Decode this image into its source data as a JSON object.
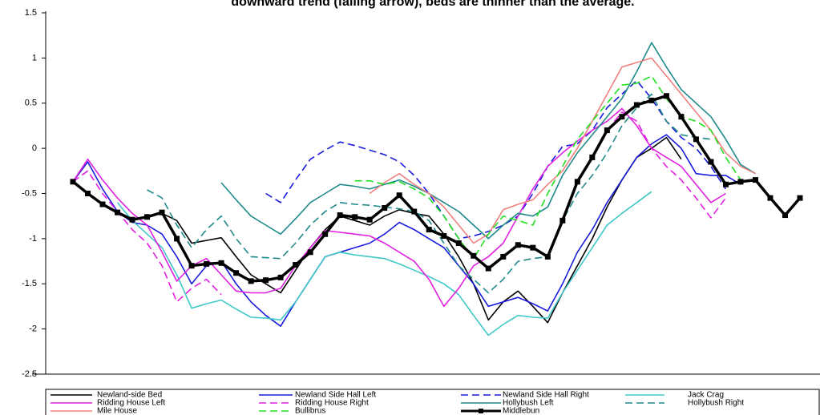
{
  "chart_data": {
    "type": "line",
    "title": "downward trend (falling arrow), beds are thinner than the average.",
    "x": [
      0,
      1,
      2,
      3,
      4,
      5,
      6,
      7,
      8,
      9,
      10,
      11,
      12,
      13,
      14,
      15,
      16,
      17,
      18,
      19,
      20,
      21,
      22,
      23,
      24,
      25,
      26,
      27,
      28,
      29,
      30,
      31,
      32,
      33,
      34,
      35,
      36,
      37,
      38,
      39,
      40,
      41,
      42,
      43,
      44,
      45,
      46,
      47,
      48,
      49
    ],
    "xlim": [
      0,
      49
    ],
    "ylim": [
      -2.5,
      1.5
    ],
    "yticks": [
      1.5,
      1,
      0.5,
      0,
      -0.5,
      -1,
      {
        "value": -1.5,
        "label": "-1.5"
      },
      {
        "value": -2,
        "label": "-2"
      },
      -2.5
    ],
    "series": [
      {
        "name": "Newland-side Bed",
        "color": "#000000",
        "dashed": false,
        "values": [
          null,
          null,
          null,
          null,
          null,
          null,
          -0.72,
          -0.8,
          -1.05,
          -1.02,
          -0.99,
          -1.2,
          -1.4,
          -1.5,
          -1.6,
          -1.35,
          -1.1,
          -0.9,
          -0.75,
          -0.8,
          -0.85,
          -0.75,
          -0.68,
          -0.72,
          -0.75,
          -0.95,
          -1.2,
          -1.5,
          -1.9,
          -1.7,
          -1.58,
          -1.75,
          -1.93,
          -1.6,
          -1.3,
          -1.0,
          -0.65,
          -0.35,
          -0.1,
          0.0,
          0.12,
          -0.12,
          null,
          null,
          null,
          null,
          null,
          null,
          null,
          null
        ]
      },
      {
        "name": "Newland Side Hall Left",
        "color": "#1a1adb",
        "dashed": false,
        "values": [
          -0.37,
          -0.15,
          -0.45,
          -0.7,
          -0.82,
          -0.85,
          -0.95,
          -1.2,
          -1.5,
          -1.3,
          -1.25,
          -1.5,
          -1.7,
          -1.85,
          -1.97,
          -1.7,
          -1.45,
          -1.2,
          -1.15,
          -1.1,
          -1.05,
          -0.95,
          -0.82,
          -0.9,
          -1.0,
          -1.1,
          -1.3,
          -1.5,
          -1.75,
          -1.7,
          -1.65,
          -1.72,
          -1.8,
          -1.5,
          -1.15,
          -0.9,
          -0.6,
          -0.35,
          -0.1,
          0.05,
          0.15,
          0.0,
          -0.28,
          -0.3,
          -0.3,
          -0.4,
          null,
          null,
          null,
          null
        ]
      },
      {
        "name": "Newland Side Hall Right",
        "color": "#1a1adb",
        "dashed": true,
        "values": [
          null,
          null,
          null,
          null,
          null,
          null,
          null,
          null,
          null,
          null,
          null,
          null,
          null,
          -0.5,
          -0.6,
          -0.35,
          -0.12,
          -0.02,
          0.07,
          0.03,
          -0.02,
          -0.07,
          -0.15,
          -0.3,
          -0.5,
          -0.75,
          -1.0,
          -0.97,
          -0.92,
          -0.85,
          -0.75,
          -0.5,
          -0.2,
          0.02,
          0.05,
          0.2,
          0.45,
          0.6,
          0.75,
          0.55,
          0.3,
          0.12,
          0.0,
          -0.2,
          -0.45,
          null,
          null,
          null,
          null,
          null
        ]
      },
      {
        "name": "Jack Crag",
        "color": "#40c8c8",
        "dashed": false,
        "values": [
          null,
          null,
          null,
          -0.6,
          -0.8,
          -0.95,
          -1.1,
          -1.4,
          -1.77,
          -1.72,
          -1.68,
          -1.78,
          -1.87,
          -1.88,
          -1.9,
          -1.7,
          -1.45,
          -1.2,
          -1.15,
          -1.18,
          -1.2,
          -1.22,
          -1.28,
          -1.35,
          -1.42,
          -1.5,
          -1.62,
          -1.85,
          -2.07,
          -1.95,
          -1.85,
          -1.87,
          -1.88,
          -1.6,
          -1.35,
          -1.1,
          -0.85,
          -0.72,
          -0.6,
          -0.48,
          null,
          null,
          null,
          null,
          null,
          null,
          null,
          null,
          null,
          null
        ]
      },
      {
        "name": "Ridding House Left",
        "color": "#e020e0",
        "dashed": false,
        "values": [
          -0.37,
          -0.12,
          -0.35,
          -0.55,
          -0.72,
          -0.85,
          -1.15,
          -1.47,
          -1.3,
          -1.22,
          -1.4,
          -1.58,
          -1.6,
          -1.6,
          -1.55,
          -1.3,
          -1.1,
          -0.91,
          -0.93,
          -0.95,
          -0.97,
          -1.05,
          -1.15,
          -1.25,
          -1.45,
          -1.75,
          -1.55,
          -1.3,
          -1.2,
          -1.05,
          -0.75,
          -0.45,
          -0.2,
          -0.05,
          0.08,
          0.2,
          0.3,
          0.44,
          0.25,
          0.0,
          -0.1,
          -0.2,
          -0.4,
          -0.6,
          -0.5,
          null,
          null,
          null,
          null,
          null
        ]
      },
      {
        "name": "Ridding House Right",
        "color": "#e020e0",
        "dashed": true,
        "values": [
          -0.37,
          -0.25,
          -0.5,
          -0.7,
          -0.9,
          -1.05,
          -1.3,
          -1.7,
          -1.55,
          -1.45,
          -1.62,
          null,
          null,
          null,
          null,
          null,
          null,
          null,
          null,
          null,
          null,
          null,
          null,
          null,
          null,
          null,
          null,
          null,
          null,
          null,
          null,
          null,
          null,
          null,
          null,
          null,
          0.2,
          0.4,
          0.3,
          0.0,
          -0.2,
          -0.35,
          -0.55,
          -0.77,
          -0.55,
          null,
          null,
          null,
          null,
          null
        ]
      },
      {
        "name": "Hollybush Left",
        "color": "#208a8a",
        "dashed": false,
        "values": [
          null,
          null,
          null,
          null,
          null,
          null,
          null,
          null,
          null,
          null,
          -0.38,
          -0.57,
          -0.75,
          -0.85,
          -0.95,
          -0.78,
          -0.6,
          -0.5,
          -0.4,
          -0.42,
          -0.45,
          -0.4,
          -0.35,
          -0.42,
          -0.5,
          -0.6,
          -0.7,
          -0.85,
          -1.0,
          -0.85,
          -0.72,
          -0.75,
          -0.65,
          -0.3,
          -0.05,
          0.15,
          0.35,
          0.55,
          0.85,
          1.17,
          0.9,
          0.65,
          0.5,
          0.35,
          0.1,
          -0.18,
          -0.28,
          null,
          null,
          null
        ]
      },
      {
        "name": "Hollybush Right",
        "color": "#208a8a",
        "dashed": true,
        "values": [
          null,
          null,
          null,
          null,
          null,
          -0.46,
          -0.55,
          -0.85,
          -1.1,
          -0.9,
          -0.75,
          -1.0,
          -1.2,
          -1.21,
          -1.22,
          -1.05,
          -0.85,
          -0.7,
          -0.6,
          -0.62,
          -0.63,
          -0.65,
          -0.67,
          -0.7,
          -0.8,
          -1.05,
          -1.3,
          -1.45,
          -1.6,
          -1.45,
          -1.25,
          -1.22,
          -1.2,
          -0.8,
          -0.5,
          -0.3,
          -0.05,
          0.25,
          0.45,
          0.6,
          0.3,
          0.15,
          0.12,
          0.1,
          null,
          null,
          null,
          null,
          null,
          null
        ]
      },
      {
        "name": "Mile House",
        "color": "#f08080",
        "dashed": false,
        "values": [
          null,
          null,
          null,
          null,
          null,
          null,
          null,
          null,
          null,
          null,
          null,
          null,
          null,
          null,
          null,
          null,
          null,
          null,
          null,
          null,
          -0.5,
          -0.38,
          -0.28,
          -0.4,
          -0.5,
          -0.65,
          -0.85,
          -1.05,
          -0.95,
          -0.68,
          -0.62,
          -0.57,
          -0.4,
          -0.25,
          0.0,
          0.3,
          0.6,
          0.9,
          0.95,
          1.0,
          0.8,
          0.6,
          0.4,
          0.2,
          -0.05,
          -0.2,
          -0.28,
          null,
          null,
          null
        ]
      },
      {
        "name": "Bullibrus",
        "color": "#20e020",
        "dashed": true,
        "values": [
          null,
          null,
          null,
          null,
          null,
          null,
          null,
          null,
          null,
          null,
          null,
          null,
          null,
          null,
          null,
          null,
          null,
          null,
          null,
          -0.36,
          -0.36,
          -0.4,
          -0.37,
          -0.45,
          -0.55,
          -0.75,
          -1.0,
          -1.22,
          -0.95,
          -0.75,
          -0.8,
          -0.85,
          -0.5,
          -0.2,
          0.1,
          0.3,
          0.5,
          0.7,
          0.72,
          0.8,
          0.55,
          0.35,
          0.3,
          0.2,
          -0.1,
          -0.35,
          null,
          null,
          null,
          null
        ]
      },
      {
        "name": "Middlebun",
        "color": "#000000",
        "dashed": false,
        "thick": true,
        "markers": true,
        "values": [
          -0.37,
          -0.5,
          -0.62,
          -0.71,
          -0.79,
          -0.76,
          -0.71,
          -1.0,
          -1.3,
          -1.28,
          -1.27,
          -1.38,
          -1.47,
          -1.46,
          -1.43,
          -1.29,
          -1.15,
          -0.95,
          -0.74,
          -0.76,
          -0.79,
          -0.66,
          -0.52,
          -0.7,
          -0.9,
          -0.97,
          -1.05,
          -1.19,
          -1.33,
          -1.2,
          -1.07,
          -1.1,
          -1.2,
          -0.8,
          -0.37,
          -0.1,
          0.2,
          0.35,
          0.48,
          0.53,
          0.58,
          0.35,
          0.1,
          -0.15,
          -0.4,
          -0.37,
          -0.35,
          -0.55,
          -0.74,
          -0.55
        ]
      }
    ]
  }
}
